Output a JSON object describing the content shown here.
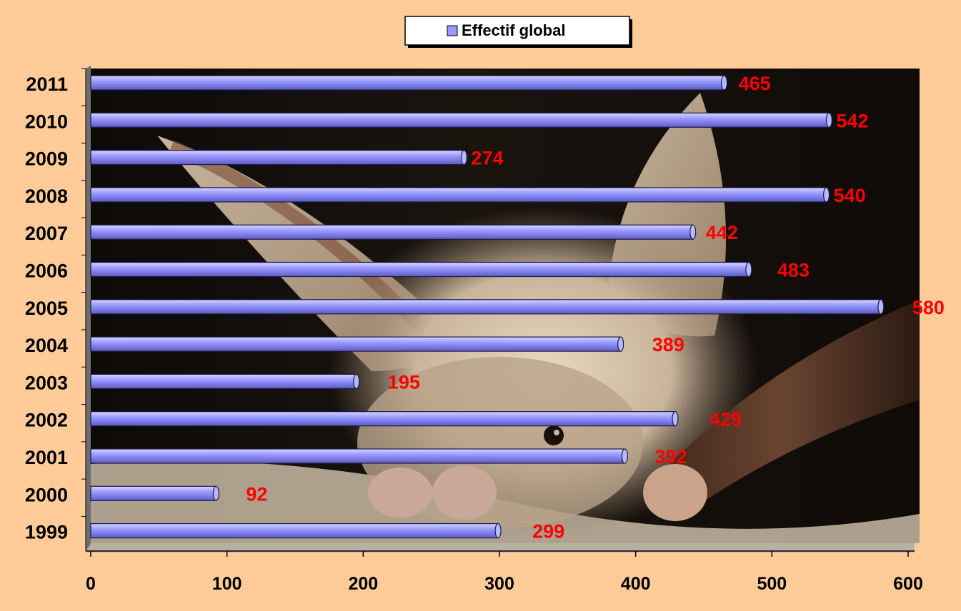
{
  "chart_data": {
    "type": "bar",
    "orientation": "horizontal",
    "categories": [
      "1999",
      "2000",
      "2001",
      "2002",
      "2003",
      "2004",
      "2005",
      "2006",
      "2007",
      "2008",
      "2009",
      "2010",
      "2011"
    ],
    "series": [
      {
        "name": "Effectif global",
        "values": [
          299,
          92,
          392,
          429,
          195,
          389,
          580,
          483,
          442,
          540,
          274,
          542,
          465
        ],
        "color": "#9999FF"
      }
    ],
    "xticks": [
      "0",
      "100",
      "200",
      "300",
      "400",
      "500",
      "600"
    ],
    "xlim": [
      0,
      600
    ],
    "legend_position": "top-center",
    "grid": false,
    "data_label_color": "#FF0000",
    "background_color": "#FFCC99"
  }
}
